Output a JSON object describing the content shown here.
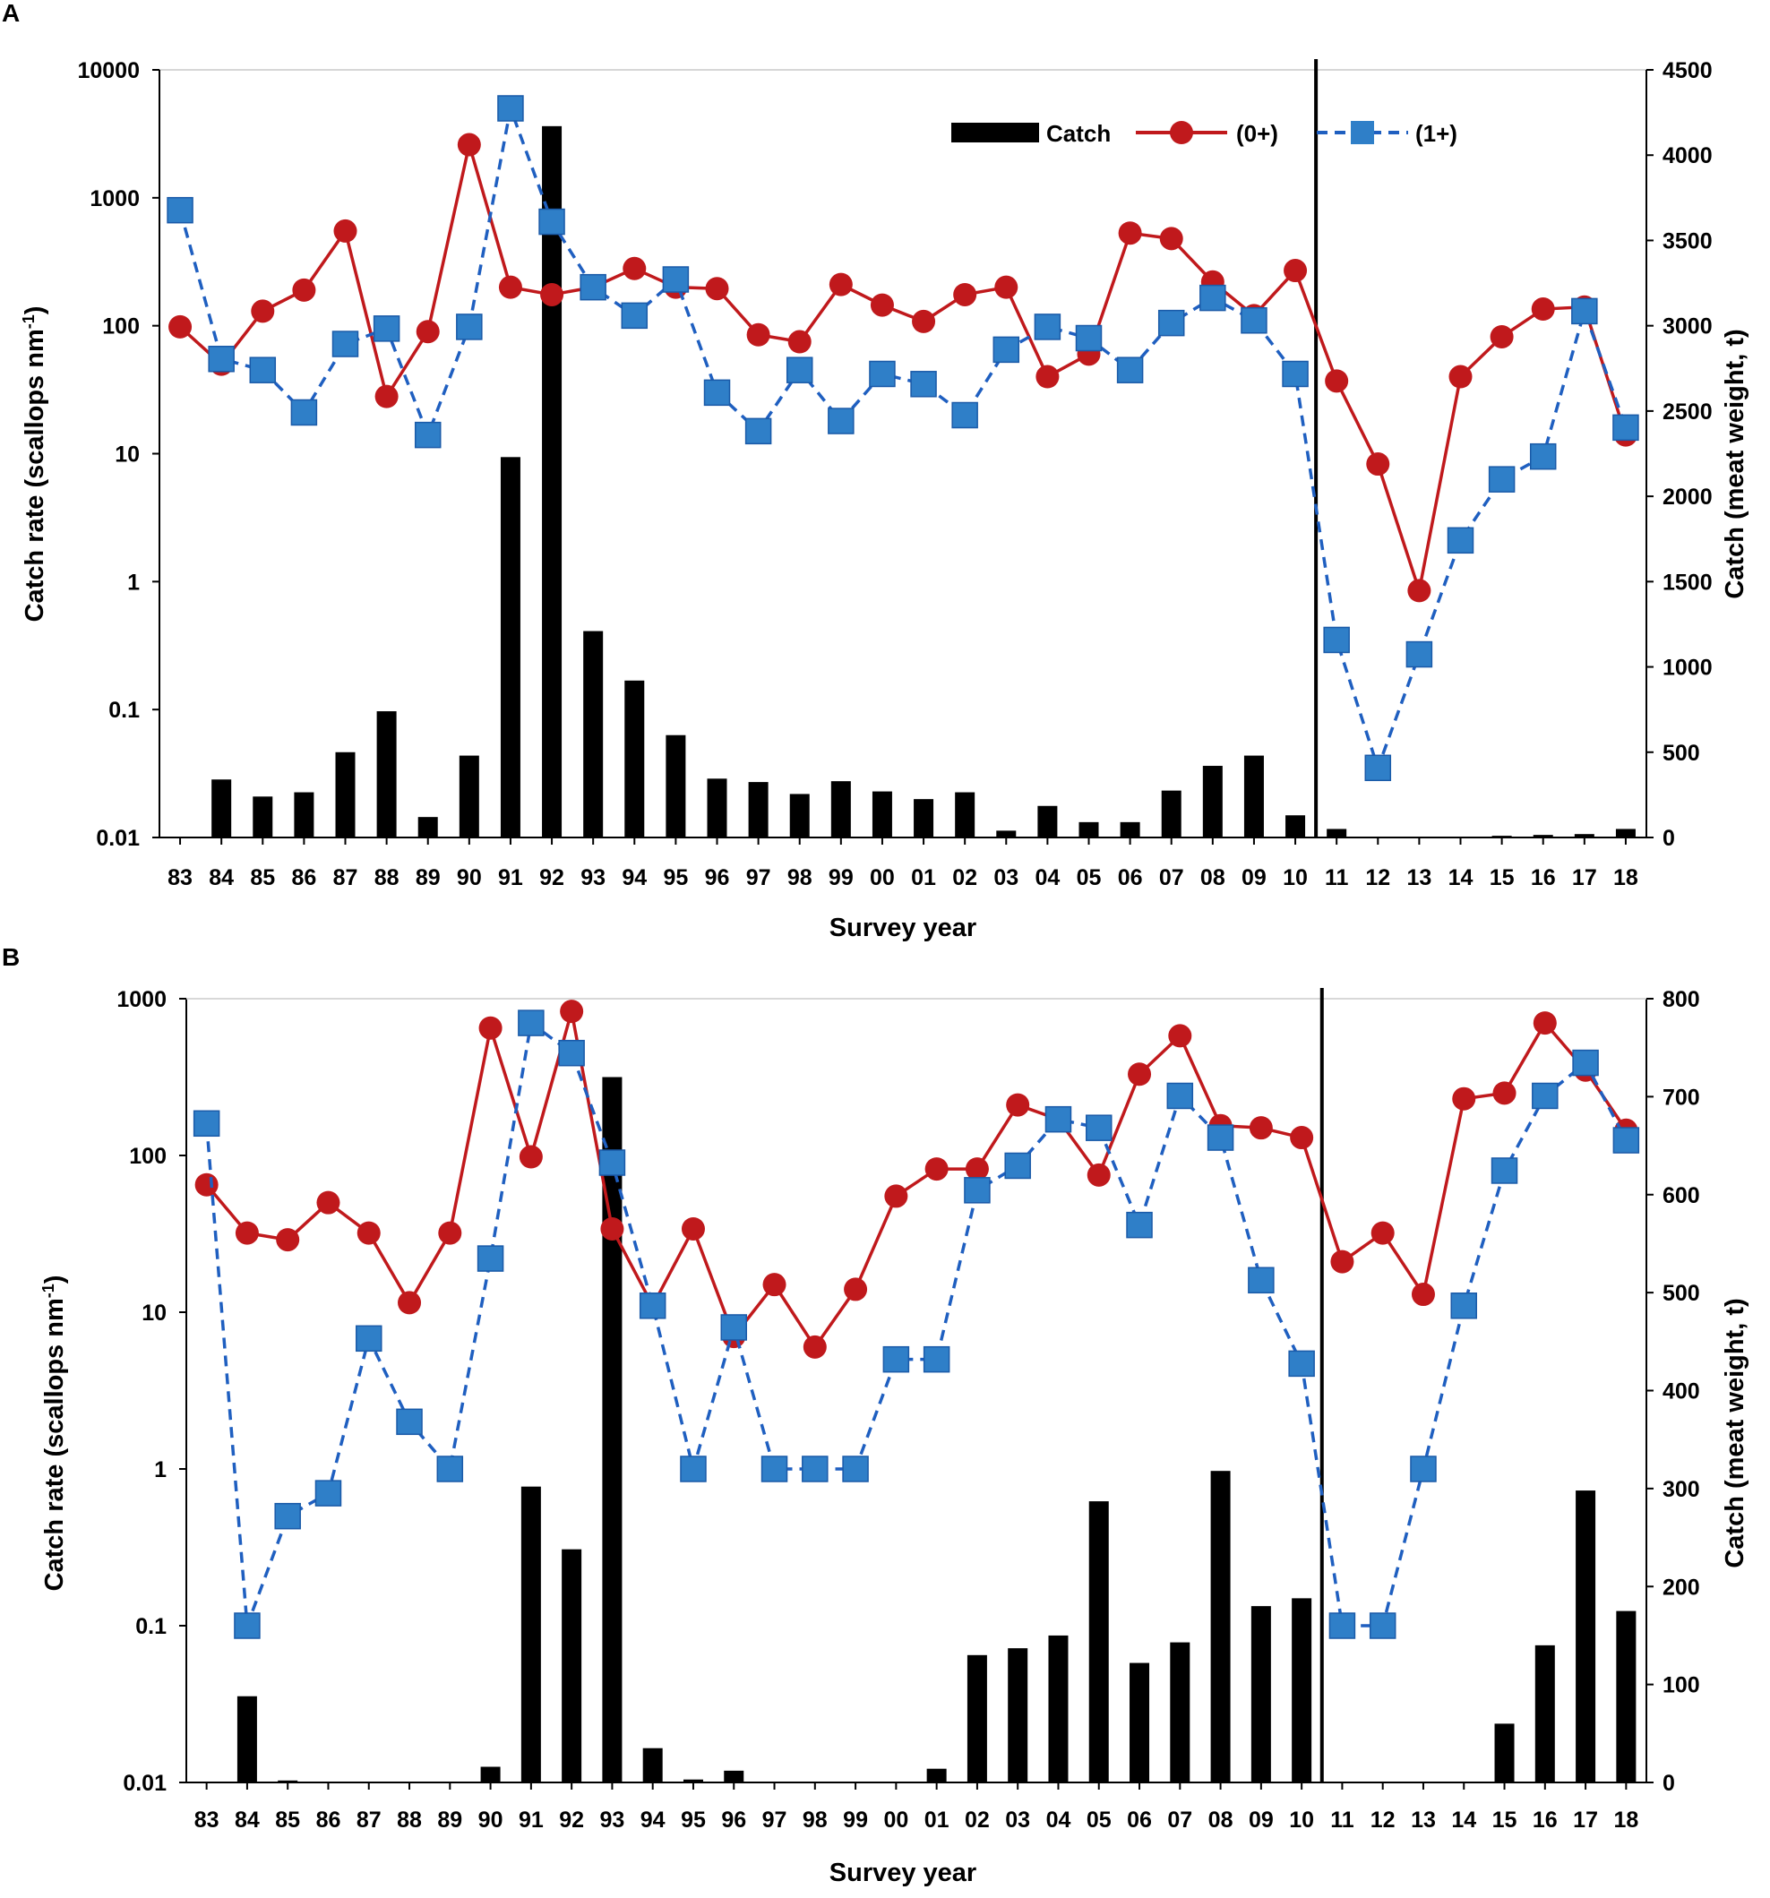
{
  "colors": {
    "catch": "#000000",
    "age0": "#c0191c",
    "age1": "#2f7fc8",
    "age1_line": "#1f5fc0",
    "frame": "#000000"
  },
  "legend": {
    "catch_label": "Catch",
    "age0_label": "(0+)",
    "age1_label": "(1+)"
  },
  "chart_data": [
    {
      "type": "bar+line",
      "panel_label": "A",
      "categories": [
        "83",
        "84",
        "85",
        "86",
        "87",
        "88",
        "89",
        "90",
        "91",
        "92",
        "93",
        "94",
        "95",
        "96",
        "97",
        "98",
        "99",
        "00",
        "01",
        "02",
        "03",
        "04",
        "05",
        "06",
        "07",
        "08",
        "09",
        "10",
        "11",
        "12",
        "13",
        "14",
        "15",
        "16",
        "17",
        "18"
      ],
      "xlabel": "Survey year",
      "ylabel_left": "Catch rate (scallops nm-1)",
      "ylabel_right": "Catch (meat weight, t)",
      "y_left": {
        "scale": "log",
        "range": [
          0.01,
          10000
        ],
        "ticks": [
          "0.01",
          "0.1",
          "1",
          "10",
          "100",
          "1000",
          "10000"
        ]
      },
      "y_right": {
        "scale": "linear",
        "range": [
          0,
          4500
        ],
        "ticks": [
          "0",
          "500",
          "1000",
          "1500",
          "2000",
          "2500",
          "3000",
          "3500",
          "4000",
          "4500"
        ]
      },
      "divider_after": "10",
      "series": [
        {
          "name": "Catch",
          "kind": "bar",
          "axis": "right",
          "values": [
            0,
            340,
            240,
            265,
            500,
            740,
            120,
            480,
            2230,
            4170,
            1210,
            920,
            600,
            345,
            325,
            255,
            330,
            270,
            225,
            265,
            40,
            185,
            90,
            90,
            275,
            420,
            480,
            130,
            50,
            0,
            0,
            0,
            10,
            15,
            20,
            50
          ]
        },
        {
          "name": "(0+)",
          "kind": "line",
          "axis": "left",
          "values": [
            98,
            50,
            130,
            190,
            550,
            28,
            90,
            2600,
            200,
            175,
            200,
            280,
            200,
            195,
            85,
            75,
            210,
            145,
            108,
            175,
            200,
            40,
            60,
            530,
            480,
            220,
            120,
            270,
            37,
            8.3,
            0.85,
            40,
            82,
            135,
            140,
            14
          ]
        },
        {
          "name": "(1+)",
          "kind": "line",
          "axis": "left",
          "values": [
            800,
            55,
            45,
            21,
            72,
            95,
            14,
            98,
            5000,
            650,
            200,
            120,
            230,
            30,
            15,
            45,
            18,
            42,
            35,
            20,
            65,
            98,
            80,
            45,
            105,
            165,
            110,
            42,
            0.35,
            0.035,
            0.27,
            2.1,
            6.3,
            9.5,
            130,
            16
          ]
        }
      ]
    },
    {
      "type": "bar+line",
      "panel_label": "B",
      "categories": [
        "83",
        "84",
        "85",
        "86",
        "87",
        "88",
        "89",
        "90",
        "91",
        "92",
        "93",
        "94",
        "95",
        "96",
        "97",
        "98",
        "99",
        "00",
        "01",
        "02",
        "03",
        "04",
        "05",
        "06",
        "07",
        "08",
        "09",
        "10",
        "11",
        "12",
        "13",
        "14",
        "15",
        "16",
        "17",
        "18"
      ],
      "xlabel": "Survey year",
      "ylabel_left": "Catch rate (scallops nm-1)",
      "ylabel_right": "Catch (meat weight, t)",
      "y_left": {
        "scale": "log",
        "range": [
          0.01,
          1000
        ],
        "ticks": [
          "0.01",
          "0.1",
          "1",
          "10",
          "100",
          "1000"
        ]
      },
      "y_right": {
        "scale": "linear",
        "range": [
          0,
          800
        ],
        "ticks": [
          "0",
          "100",
          "200",
          "300",
          "400",
          "500",
          "600",
          "700",
          "800"
        ]
      },
      "divider_after": "10",
      "series": [
        {
          "name": "Catch",
          "kind": "bar",
          "axis": "right",
          "values": [
            0,
            88,
            2,
            0,
            0,
            0,
            0,
            16,
            302,
            238,
            720,
            35,
            3,
            12,
            0,
            0,
            0,
            0,
            14,
            130,
            137,
            150,
            287,
            122,
            143,
            318,
            180,
            188,
            0,
            0,
            0,
            0,
            60,
            140,
            298,
            175
          ]
        },
        {
          "name": "(0+)",
          "kind": "line",
          "axis": "left",
          "values": [
            65,
            32,
            29,
            50,
            32,
            11.5,
            32,
            650,
            98,
            830,
            34,
            11,
            34,
            7,
            15,
            6,
            14,
            55,
            82,
            82,
            210,
            170,
            75,
            330,
            580,
            155,
            150,
            130,
            21,
            32,
            13,
            230,
            250,
            700,
            350,
            145
          ]
        },
        {
          "name": "(1+)",
          "kind": "line",
          "axis": "left",
          "values": [
            160,
            0.1,
            0.5,
            0.7,
            6.8,
            2,
            1,
            22,
            700,
            450,
            90,
            11,
            1,
            8,
            1,
            1,
            1,
            5,
            5,
            60,
            86,
            170,
            150,
            36,
            240,
            130,
            16,
            4.7,
            0.1,
            0.1,
            1,
            11,
            80,
            240,
            390,
            125
          ]
        }
      ]
    }
  ]
}
